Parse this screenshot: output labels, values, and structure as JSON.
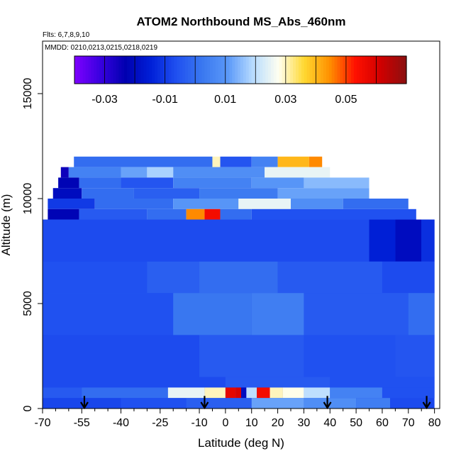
{
  "chart_data": {
    "type": "heatmap",
    "title": "ATOM2 Northbound MS_Abs_460nm",
    "flights_note": "Flts: 6,7,8,9,10",
    "dates_note": "MMDD: 0210,0213,0215,0218,0219",
    "xlabel": "Latitude (deg N)",
    "ylabel": "Altitude (m)",
    "xlim": [
      -70,
      82
    ],
    "ylim": [
      0,
      17500
    ],
    "x_ticks": [
      -70,
      -55,
      -40,
      -25,
      -10,
      0,
      10,
      20,
      30,
      40,
      50,
      60,
      70,
      80
    ],
    "x_minor_ticks": [
      -65,
      -60,
      -50,
      -45,
      -35,
      -30,
      -20,
      -15,
      -5,
      5,
      15,
      25,
      35,
      45,
      55,
      65,
      75
    ],
    "y_ticks": [
      0,
      5000,
      10000,
      15000
    ],
    "colorbar": {
      "range": [
        -0.04,
        0.07
      ],
      "tick_values": [
        -0.03,
        -0.01,
        0.01,
        0.03,
        0.05
      ],
      "tick_labels": [
        "-0.03",
        "-0.01",
        "0.01",
        "0.03",
        "0.05"
      ],
      "colors": [
        "#7f00ff",
        "#3a00e0",
        "#0000b0",
        "#0020d8",
        "#2050f0",
        "#3a78f0",
        "#5a98f8",
        "#b8dcff",
        "#fffff0",
        "#ffd830",
        "#ff9000",
        "#ff1000",
        "#d00000",
        "#8a1010"
      ]
    },
    "flight_markers_latitude": [
      -54,
      -8,
      39,
      77
    ],
    "background_value": -0.008,
    "profile": [
      {
        "alt": 1500,
        "value": -0.006
      },
      {
        "alt": 3000,
        "value": -0.004
      },
      {
        "alt": 4500,
        "value": 0.0
      },
      {
        "alt": 6000,
        "value": -0.002
      },
      {
        "alt": 7500,
        "value": -0.006
      },
      {
        "alt": 9000,
        "value": -0.007
      }
    ],
    "layers": [
      {
        "alt_min": 11500,
        "alt_max": 12000,
        "lat_min": -58,
        "lat_max": 37,
        "cells": [
          [
            -58,
            -5,
            0.0
          ],
          [
            -5,
            -2,
            0.03
          ],
          [
            -2,
            10,
            -0.005
          ],
          [
            10,
            20,
            0.005
          ],
          [
            20,
            32,
            0.04
          ],
          [
            32,
            37,
            0.045
          ]
        ]
      },
      {
        "alt_min": 11000,
        "alt_max": 11500,
        "lat_min": -63,
        "lat_max": 40,
        "cells": [
          [
            -63,
            -60,
            -0.025
          ],
          [
            -60,
            -40,
            0.005
          ],
          [
            -40,
            -30,
            0.012
          ],
          [
            -30,
            -20,
            0.018
          ],
          [
            -20,
            15,
            0.008
          ],
          [
            15,
            40,
            0.025
          ]
        ]
      },
      {
        "alt_min": 10500,
        "alt_max": 11000,
        "lat_min": -64,
        "lat_max": 55,
        "cells": [
          [
            -64,
            -56,
            -0.022
          ],
          [
            -56,
            -40,
            0.0
          ],
          [
            -40,
            -20,
            -0.005
          ],
          [
            -20,
            10,
            0.005
          ],
          [
            10,
            30,
            0.01
          ],
          [
            30,
            55,
            0.015
          ]
        ]
      },
      {
        "alt_min": 10000,
        "alt_max": 10500,
        "lat_min": -66,
        "lat_max": 55,
        "cells": [
          [
            -66,
            -55,
            -0.02
          ],
          [
            -55,
            -35,
            0.0
          ],
          [
            -35,
            -10,
            -0.003
          ],
          [
            -10,
            20,
            0.003
          ],
          [
            20,
            55,
            0.012
          ]
        ]
      },
      {
        "alt_min": 9500,
        "alt_max": 10000,
        "lat_min": -68,
        "lat_max": 70,
        "cells": [
          [
            -68,
            -50,
            -0.01
          ],
          [
            -50,
            -20,
            0.0
          ],
          [
            -20,
            5,
            0.01
          ],
          [
            5,
            25,
            0.025
          ],
          [
            25,
            45,
            0.008
          ],
          [
            45,
            70,
            0.0
          ]
        ]
      },
      {
        "alt_min": 9000,
        "alt_max": 9500,
        "lat_min": -68,
        "lat_max": 73,
        "cells": [
          [
            -68,
            -56,
            -0.022
          ],
          [
            -56,
            -30,
            -0.004
          ],
          [
            -30,
            -15,
            0.0
          ],
          [
            -15,
            -8,
            0.045
          ],
          [
            -8,
            -2,
            0.055
          ],
          [
            -2,
            10,
            0.0
          ],
          [
            10,
            73,
            -0.006
          ]
        ]
      },
      {
        "alt_min": 7000,
        "alt_max": 9000,
        "lat_min": -70,
        "lat_max": 80,
        "cells": [
          [
            -70,
            55,
            -0.007
          ],
          [
            55,
            65,
            -0.015
          ],
          [
            65,
            75,
            -0.02
          ],
          [
            75,
            80,
            -0.012
          ]
        ]
      },
      {
        "alt_min": 5500,
        "alt_max": 7000,
        "lat_min": -70,
        "lat_max": 80,
        "cells": [
          [
            -70,
            -30,
            -0.006
          ],
          [
            -30,
            -10,
            -0.003
          ],
          [
            -10,
            20,
            0.0
          ],
          [
            20,
            60,
            -0.004
          ],
          [
            60,
            80,
            -0.007
          ]
        ]
      },
      {
        "alt_min": 3500,
        "alt_max": 5500,
        "lat_min": -70,
        "lat_max": 80,
        "cells": [
          [
            -70,
            -20,
            -0.006
          ],
          [
            -20,
            10,
            0.002
          ],
          [
            10,
            30,
            0.004
          ],
          [
            30,
            70,
            -0.004
          ],
          [
            70,
            80,
            0.0
          ]
        ]
      },
      {
        "alt_min": 1500,
        "alt_max": 3500,
        "lat_min": -70,
        "lat_max": 80,
        "cells": [
          [
            -70,
            -10,
            -0.007
          ],
          [
            -10,
            30,
            -0.004
          ],
          [
            30,
            65,
            -0.006
          ],
          [
            65,
            80,
            -0.005
          ]
        ]
      },
      {
        "alt_min": 1000,
        "alt_max": 1500,
        "lat_min": -70,
        "lat_max": 80,
        "cells": [
          [
            -70,
            0,
            -0.007
          ],
          [
            0,
            40,
            -0.004
          ],
          [
            40,
            80,
            -0.006
          ]
        ]
      },
      {
        "alt_min": 500,
        "alt_max": 1000,
        "lat_min": -70,
        "lat_max": 80,
        "cells": [
          [
            -70,
            -55,
            -0.004
          ],
          [
            -55,
            -22,
            0.0
          ],
          [
            -22,
            -8,
            0.025
          ],
          [
            -8,
            0,
            0.03
          ],
          [
            0,
            4,
            0.058
          ],
          [
            4,
            6,
            0.06
          ],
          [
            6,
            8,
            -0.02
          ],
          [
            8,
            12,
            0.02
          ],
          [
            12,
            17,
            0.055
          ],
          [
            17,
            22,
            0.03
          ],
          [
            22,
            30,
            0.028
          ],
          [
            30,
            40,
            0.02
          ],
          [
            40,
            60,
            0.005
          ],
          [
            60,
            80,
            -0.006
          ]
        ]
      },
      {
        "alt_min": 0,
        "alt_max": 500,
        "lat_min": -68,
        "lat_max": 63,
        "cells": [
          [
            -68,
            -40,
            -0.008
          ],
          [
            -40,
            -15,
            -0.006
          ],
          [
            -15,
            10,
            -0.003
          ],
          [
            10,
            30,
            0.012
          ],
          [
            30,
            50,
            0.008
          ],
          [
            50,
            63,
            0.004
          ]
        ]
      }
    ]
  }
}
